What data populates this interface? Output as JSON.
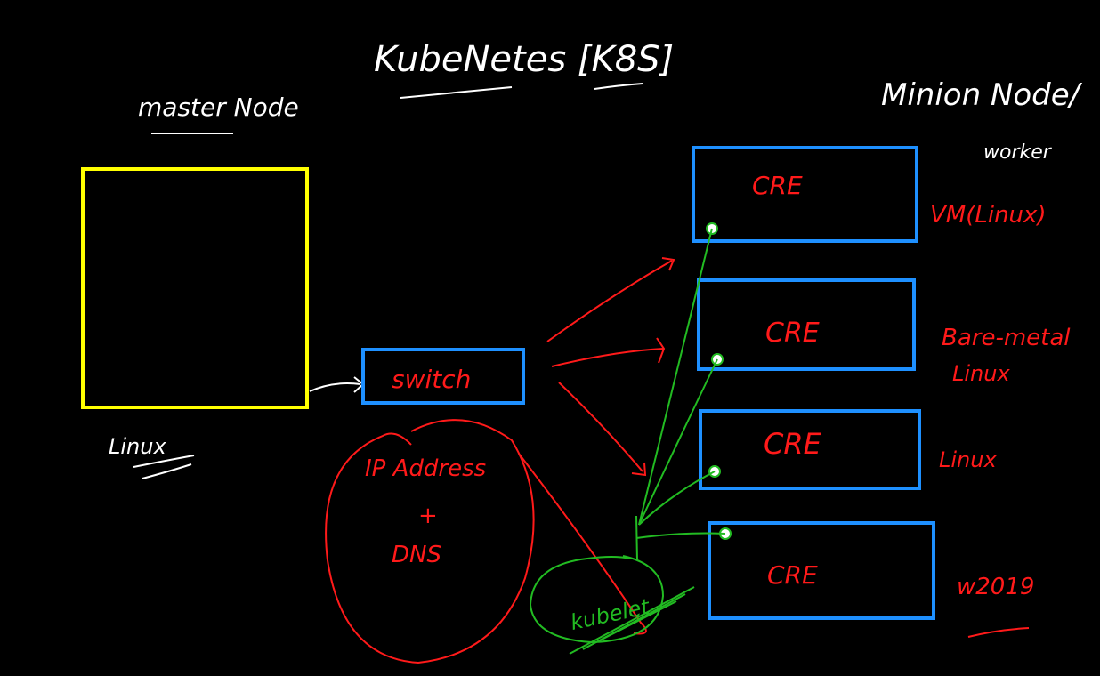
{
  "title": "KubeNetes [K8S]",
  "master": {
    "heading": "master Node",
    "os_label": "Linux"
  },
  "minion": {
    "heading": "Minion Node/",
    "subheading": "worker"
  },
  "switch_label": "switch",
  "network_note": {
    "line1": "IP Address",
    "line2": "+",
    "line3": "DNS"
  },
  "kubelet_label": "kubelet",
  "workers": [
    {
      "runtime": "CRE",
      "os_note": "VM(Linux)"
    },
    {
      "runtime": "CRE",
      "os_note_line1": "Bare-metal",
      "os_note_line2": "Linux"
    },
    {
      "runtime": "CRE",
      "os_note": "Linux"
    },
    {
      "runtime": "CRE",
      "os_note": "w2019"
    }
  ],
  "colors": {
    "background": "#000000",
    "ink_white": "#ffffff",
    "master_box": "#ffff00",
    "worker_box": "#1e90ff",
    "red_ink": "#ff1a1a",
    "green_ink": "#22bb22"
  }
}
